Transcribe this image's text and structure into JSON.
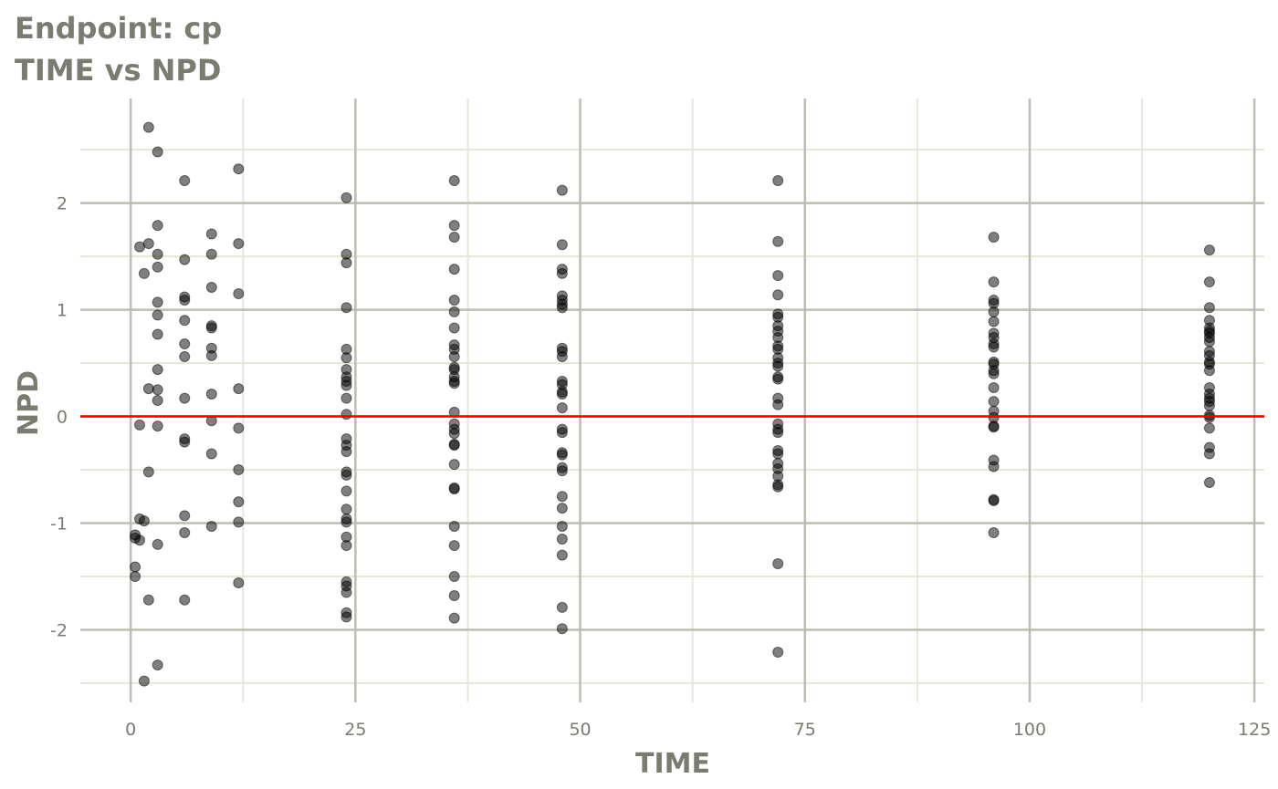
{
  "title_line1": "Endpoint:  cp",
  "title_line2": "TIME vs NPD",
  "chart_data": {
    "type": "scatter",
    "title": "TIME vs NPD",
    "xlabel": "TIME",
    "ylabel": "NPD",
    "xlim": [
      -5.6,
      126.1
    ],
    "ylim": [
      -2.68,
      2.98
    ],
    "xticks": [
      0,
      25,
      50,
      75,
      100,
      125
    ],
    "xtick_labels": [
      "0",
      "25",
      "50",
      "75",
      "100",
      "125"
    ],
    "yticks": [
      -2,
      -1,
      0,
      1,
      2
    ],
    "ytick_labels": [
      "-2",
      "-1",
      "0",
      "1",
      "2"
    ],
    "grid": true,
    "reference_line": {
      "y": 0,
      "color": "#ee0000"
    },
    "point_color": "#000000",
    "point_alpha": 0.5,
    "colors": {
      "major_grid": "#bdbdb3",
      "minor_grid": "#e6e6d9",
      "text": "#7b7b72"
    },
    "groups": [
      {
        "x": 0.5,
        "y": [
          -1.11,
          -1.14,
          -1.41,
          -1.5
        ]
      },
      {
        "x": 1,
        "y": [
          1.59,
          -0.08,
          -0.96,
          -1.16
        ]
      },
      {
        "x": 1.5,
        "y": [
          1.34,
          -0.98,
          -2.48
        ]
      },
      {
        "x": 2,
        "y": [
          2.71,
          1.62,
          0.26,
          -0.52,
          -1.72
        ]
      },
      {
        "x": 3,
        "y": [
          2.48,
          1.79,
          1.52,
          1.4,
          1.07,
          0.95,
          0.77,
          0.44,
          0.25,
          0.15,
          -0.09,
          -1.2,
          -2.33
        ]
      },
      {
        "x": 6,
        "y": [
          2.21,
          1.47,
          1.12,
          1.09,
          0.9,
          0.68,
          0.56,
          0.17,
          -0.21,
          -0.24,
          -0.93,
          -1.09,
          -1.72
        ]
      },
      {
        "x": 9,
        "y": [
          1.71,
          1.52,
          1.21,
          0.85,
          0.83,
          0.64,
          0.57,
          0.21,
          -0.04,
          -0.35,
          -1.03
        ]
      },
      {
        "x": 12,
        "y": [
          2.32,
          1.62,
          1.15,
          0.26,
          -0.11,
          -0.5,
          -0.8,
          -0.99,
          -1.56
        ]
      },
      {
        "x": 24,
        "y": [
          2.05,
          1.52,
          1.44,
          1.02,
          0.63,
          0.55,
          0.44,
          0.37,
          0.33,
          0.29,
          0.17,
          0.02,
          -0.21,
          -0.27,
          -0.33,
          -0.52,
          -0.55,
          -0.7,
          -0.87,
          -0.96,
          -0.99,
          -1.13,
          -1.21,
          -1.55,
          -1.59,
          -1.65,
          -1.84,
          -1.88
        ]
      },
      {
        "x": 36,
        "y": [
          2.21,
          1.79,
          1.68,
          1.38,
          1.09,
          0.98,
          0.83,
          0.67,
          0.63,
          0.56,
          0.46,
          0.44,
          0.37,
          0.33,
          0.31,
          0.04,
          -0.07,
          -0.12,
          -0.16,
          -0.26,
          -0.27,
          -0.45,
          -0.67,
          -0.68,
          -1.03,
          -1.21,
          -1.5,
          -1.68,
          -1.89
        ]
      },
      {
        "x": 48,
        "y": [
          2.12,
          1.61,
          1.38,
          1.34,
          1.13,
          1.09,
          1.05,
          1.02,
          0.64,
          0.61,
          0.56,
          0.33,
          0.3,
          0.23,
          0.21,
          0.08,
          -0.12,
          -0.15,
          -0.34,
          -0.36,
          -0.48,
          -0.51,
          -0.75,
          -0.86,
          -1.03,
          -1.15,
          -1.3,
          -1.79,
          -1.99
        ]
      },
      {
        "x": 72,
        "y": [
          2.21,
          1.64,
          1.32,
          1.14,
          0.96,
          0.93,
          0.85,
          0.8,
          0.74,
          0.66,
          0.63,
          0.55,
          0.5,
          0.47,
          0.37,
          0.35,
          0.17,
          0.11,
          -0.07,
          -0.12,
          -0.15,
          -0.32,
          -0.35,
          -0.44,
          -0.49,
          -0.56,
          -0.64,
          -0.66,
          -1.38,
          -2.21
        ]
      },
      {
        "x": 96,
        "y": [
          1.68,
          1.26,
          1.09,
          1.06,
          0.98,
          0.89,
          0.78,
          0.74,
          0.68,
          0.65,
          0.51,
          0.49,
          0.43,
          0.4,
          0.27,
          0.14,
          0.05,
          -0.01,
          -0.09,
          -0.1,
          -0.41,
          -0.47,
          -0.78,
          -0.79,
          -1.09
        ]
      },
      {
        "x": 120,
        "y": [
          1.56,
          1.26,
          1.02,
          0.9,
          0.83,
          0.8,
          0.78,
          0.74,
          0.7,
          0.61,
          0.57,
          0.51,
          0.49,
          0.43,
          0.27,
          0.21,
          0.17,
          0.14,
          0.1,
          0.01,
          -0.01,
          -0.11,
          -0.29,
          -0.35,
          -0.62
        ]
      }
    ]
  }
}
